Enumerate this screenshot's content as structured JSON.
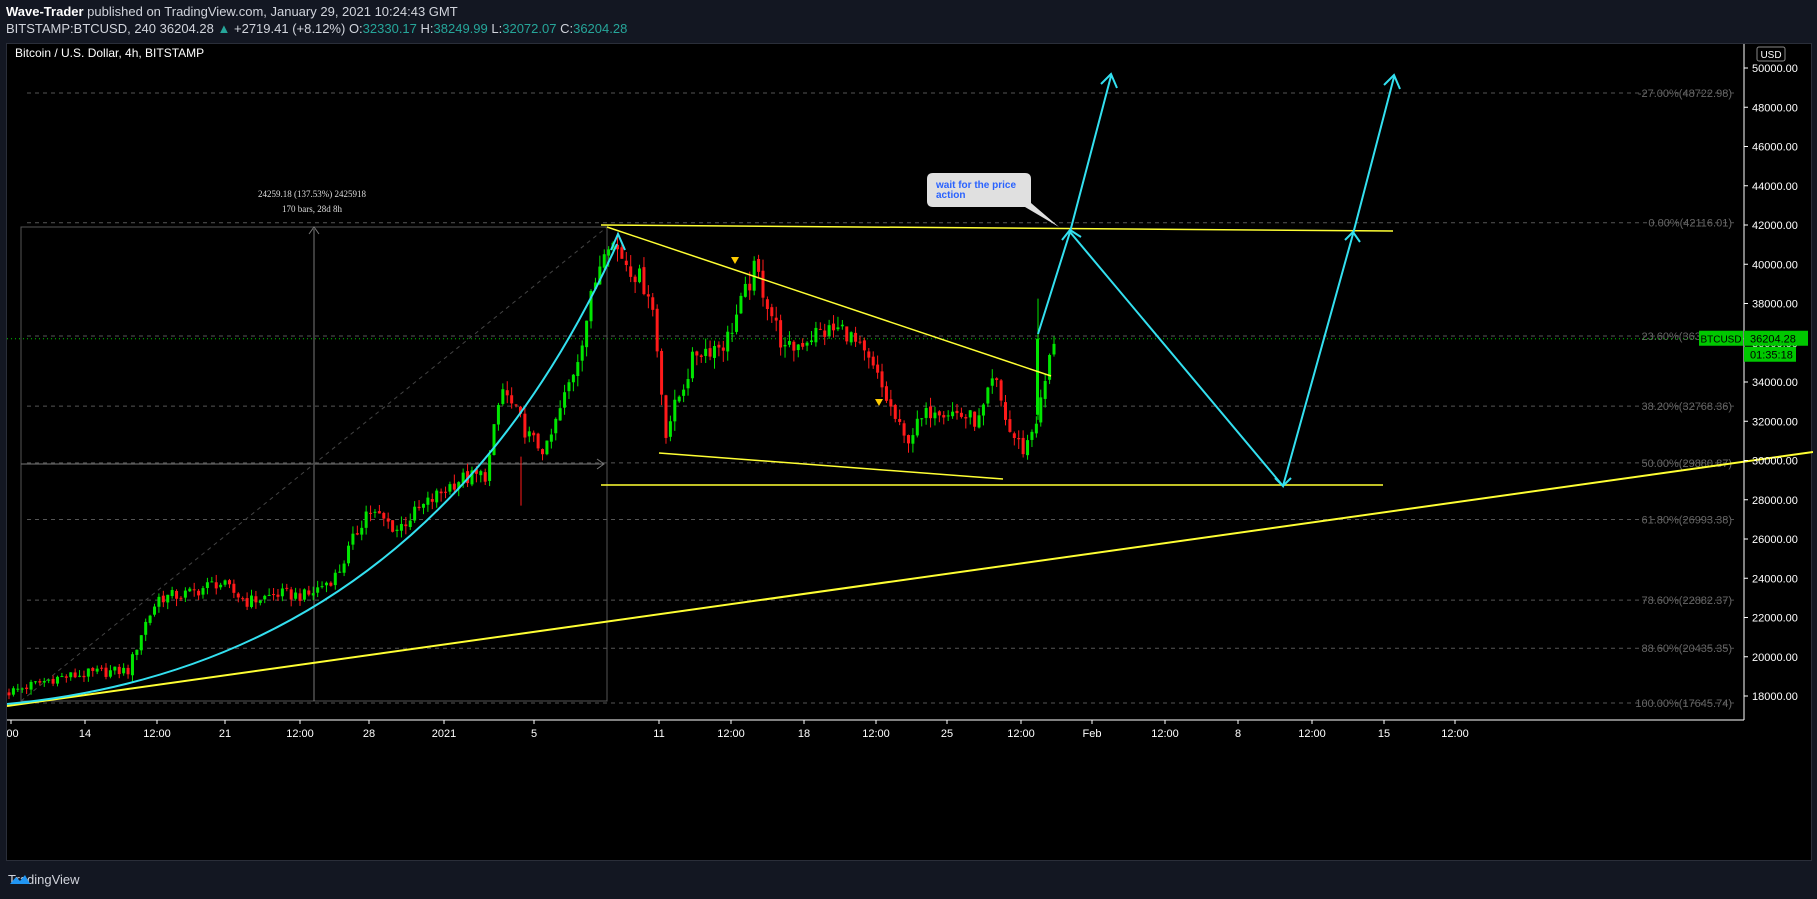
{
  "header": {
    "author": "Wave-Trader",
    "published_text": " published on TradingView.com, January 29, 2021 10:24:43 GMT",
    "symbol": "BITSTAMP:BTCUSD, 240",
    "last": "36204.28",
    "change": "+2719.41 (+8.12%)",
    "open_label": "O:",
    "open": "32330.17",
    "high_label": "H:",
    "high": "38249.99",
    "low_label": "L:",
    "low": "32072.07",
    "close_label": "C:",
    "close": "36204.28"
  },
  "chart_title": "Bitcoin / U.S. Dollar, 4h, BITSTAMP",
  "currency_badge": "USD",
  "footer": {
    "brand": "TradingView"
  },
  "colors": {
    "up": "#00e600",
    "down": "#ff1a1a",
    "yellow": "#ffff33",
    "cyan": "#33e0f0",
    "fib": "#555555",
    "price_tag": "#00c800"
  },
  "chart_data": {
    "type": "candlestick",
    "symbol": "BTCUSD",
    "timeframe": "4h",
    "y_axis_ticks": [
      18000,
      20000,
      22000,
      24000,
      26000,
      28000,
      30000,
      32000,
      34000,
      36000,
      38000,
      40000,
      42000,
      44000,
      46000,
      48000,
      50000
    ],
    "y_tick_labels": [
      "18000.00",
      "20000.00",
      "22000.00",
      "24000.00",
      "26000.00",
      "28000.00",
      "30000.00",
      "32000.00",
      "34000.00",
      "36000.00",
      "38000.00",
      "40000.00",
      "42000.00",
      "44000.00",
      "46000.00",
      "48000.00",
      "50000.00"
    ],
    "ylim": [
      17000,
      52000
    ],
    "x_tick_labels": [
      ":00",
      "14",
      "12:00",
      "21",
      "12:00",
      "28",
      "2021",
      "5",
      "11",
      "12:00",
      "18",
      "12:00",
      "25",
      "12:00",
      "Feb",
      "12:00",
      "8",
      "12:00",
      "15",
      "12:00"
    ],
    "approx_path": [
      [
        0,
        18200
      ],
      [
        0.03,
        18900
      ],
      [
        0.06,
        19200
      ],
      [
        0.08,
        19300
      ],
      [
        0.09,
        21500
      ],
      [
        0.1,
        23000
      ],
      [
        0.12,
        23200
      ],
      [
        0.14,
        23800
      ],
      [
        0.16,
        22800
      ],
      [
        0.18,
        23200
      ],
      [
        0.2,
        23100
      ],
      [
        0.22,
        24200
      ],
      [
        0.24,
        27500
      ],
      [
        0.26,
        26500
      ],
      [
        0.27,
        27200
      ],
      [
        0.3,
        29000
      ],
      [
        0.32,
        29300
      ],
      [
        0.33,
        33700
      ],
      [
        0.35,
        31000
      ],
      [
        0.36,
        30500
      ],
      [
        0.38,
        35000
      ],
      [
        0.4,
        41500
      ],
      [
        0.41,
        40500
      ],
      [
        0.43,
        38500
      ],
      [
        0.44,
        31500
      ],
      [
        0.46,
        35500
      ],
      [
        0.48,
        36000
      ],
      [
        0.5,
        39800
      ],
      [
        0.52,
        35500
      ],
      [
        0.54,
        36500
      ],
      [
        0.56,
        36700
      ],
      [
        0.58,
        34500
      ],
      [
        0.6,
        31000
      ],
      [
        0.62,
        32800
      ],
      [
        0.63,
        32500
      ],
      [
        0.65,
        32000
      ],
      [
        0.66,
        34200
      ],
      [
        0.67,
        31500
      ],
      [
        0.68,
        30500
      ],
      [
        0.69,
        32500
      ],
      [
        0.7,
        36200
      ]
    ],
    "fib_levels": [
      {
        "label": "-27.00%(48722.98)",
        "price": 48722.98
      },
      {
        "label": "0.00%(42116.01)",
        "price": 42116.01
      },
      {
        "label": "23.60%(36341.03)",
        "price": 36341.03
      },
      {
        "label": "38.20%(32768.36)",
        "price": 32768.36
      },
      {
        "label": "50.00%(29880.87)",
        "price": 29880.87
      },
      {
        "label": "61.80%(26993.38)",
        "price": 26993.38
      },
      {
        "label": "78.60%(22882.37)",
        "price": 22882.37
      },
      {
        "label": "88.60%(20435.35)",
        "price": 20435.35
      },
      {
        "label": "100.00%(17645.74)",
        "price": 17645.74
      }
    ],
    "price_tag": {
      "symbol": "BTCUSD",
      "price": "36204.28",
      "countdown": "01:35:18"
    },
    "measure": {
      "line1": "24259.18 (137.53%) 2425918",
      "line2": "170 bars, 28d 8h"
    },
    "callout": "wait for the price action"
  }
}
